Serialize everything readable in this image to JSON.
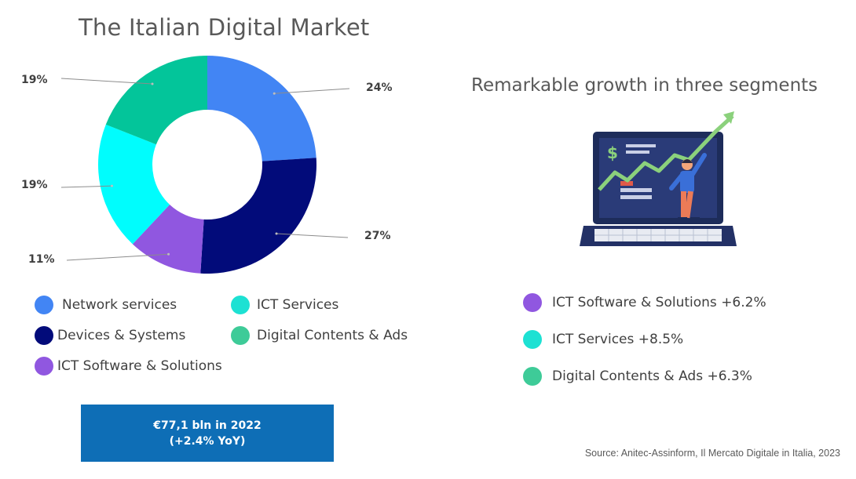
{
  "title": "The Italian Digital Market",
  "chart_data": {
    "type": "pie",
    "title": "The Italian Digital Market",
    "series": [
      {
        "name": "Network services",
        "value": 24,
        "label": "24%",
        "color": "#4285f4"
      },
      {
        "name": "Devices & Systems",
        "value": 27,
        "label": "27%",
        "color": "#020b7a"
      },
      {
        "name": "ICT Software & Solutions",
        "value": 11,
        "label": "11%",
        "color": "#9057e0"
      },
      {
        "name": "ICT Services",
        "value": 19,
        "label": "19%",
        "color": "#00fdfd"
      },
      {
        "name": "Digital Contents & Ads",
        "value": 19,
        "label": "19%",
        "color": "#03c59a"
      }
    ],
    "legend": [
      {
        "label": "Network services",
        "color": "#4285f4"
      },
      {
        "label": "ICT Services",
        "color": "#1de1d3"
      },
      {
        "label": "Devices & Systems",
        "color": "#020b7a"
      },
      {
        "label": "Digital Contents & Ads",
        "color": "#3ecb98"
      },
      {
        "label": "ICT Software & Solutions",
        "color": "#9057e0"
      }
    ]
  },
  "total": {
    "line1": "€77,1 bln in 2022",
    "line2": "(+2.4% YoY)"
  },
  "subtitle": "Remarkable growth in three segments",
  "illustration": {
    "dollar_sign": "$"
  },
  "growth": [
    {
      "label": "ICT Software & Solutions +6.2%",
      "color": "#9057e0"
    },
    {
      "label": "ICT Services +8.5%",
      "color": "#1de1d3"
    },
    {
      "label": "Digital Contents & Ads +6.3%",
      "color": "#3ecb98"
    }
  ],
  "source": "Source: Anitec-Assinform, Il Mercato Digitale in Italia, 2023"
}
